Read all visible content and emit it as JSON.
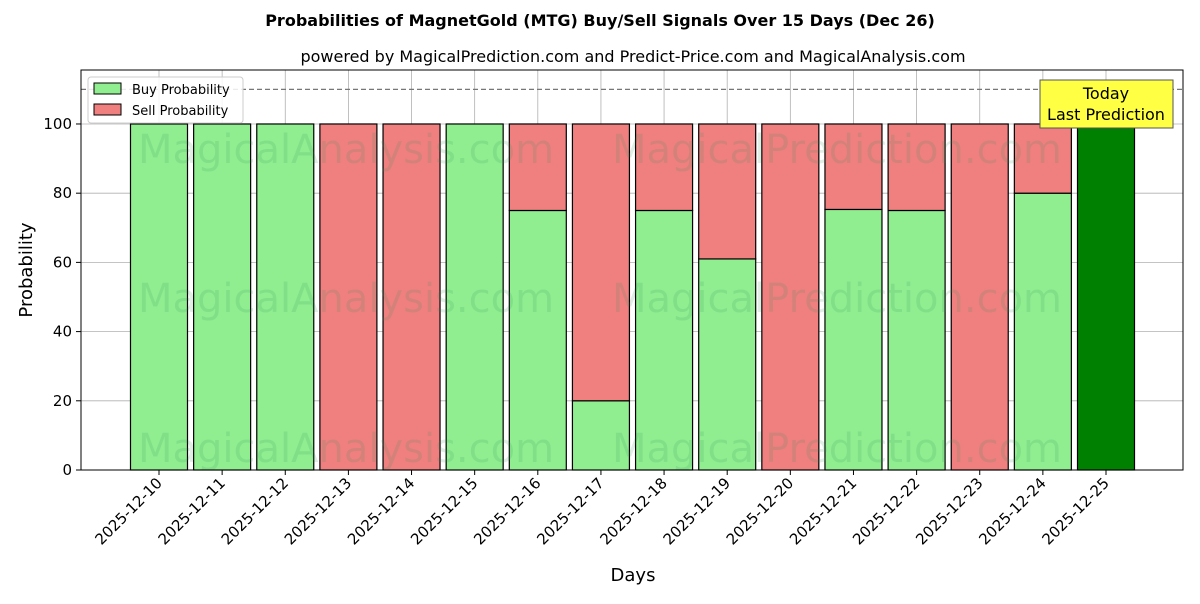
{
  "chart_data": {
    "type": "bar",
    "stacked": true,
    "title": "Probabilities of MagnetGold (MTG) Buy/Sell Signals Over 15 Days (Dec 26)",
    "subtitle": "powered by MagicalPrediction.com and Predict-Price.com and MagicalAnalysis.com",
    "xlabel": "Days",
    "ylabel": "Probability",
    "ylim": [
      0,
      115.6
    ],
    "yticks": [
      0,
      20,
      40,
      60,
      80,
      100
    ],
    "reference_line": 110,
    "grid": true,
    "legend_position": "top-left",
    "categories": [
      "2025-12-10",
      "2025-12-11",
      "2025-12-12",
      "2025-12-13",
      "2025-12-14",
      "2025-12-15",
      "2025-12-16",
      "2025-12-17",
      "2025-12-18",
      "2025-12-19",
      "2025-12-20",
      "2025-12-21",
      "2025-12-22",
      "2025-12-23",
      "2025-12-24",
      "2025-12-25"
    ],
    "series": [
      {
        "name": "Buy Probability",
        "color": "#90ee90",
        "values": [
          100,
          100,
          100,
          0,
          0,
          100,
          75,
          20,
          75,
          61,
          0,
          75.3,
          75,
          0,
          80,
          100
        ]
      },
      {
        "name": "Sell Probability",
        "color": "#f08080",
        "values": [
          0,
          0,
          0,
          100,
          100,
          0,
          25,
          80,
          25,
          39,
          100,
          24.7,
          25,
          100,
          20,
          0
        ]
      }
    ],
    "highlight_color": "#008000",
    "annotation": {
      "line1": "Today",
      "line2": "Last Prediction"
    },
    "watermarks": [
      "MagicalAnalysis.com",
      "MagicalPrediction.com"
    ]
  }
}
